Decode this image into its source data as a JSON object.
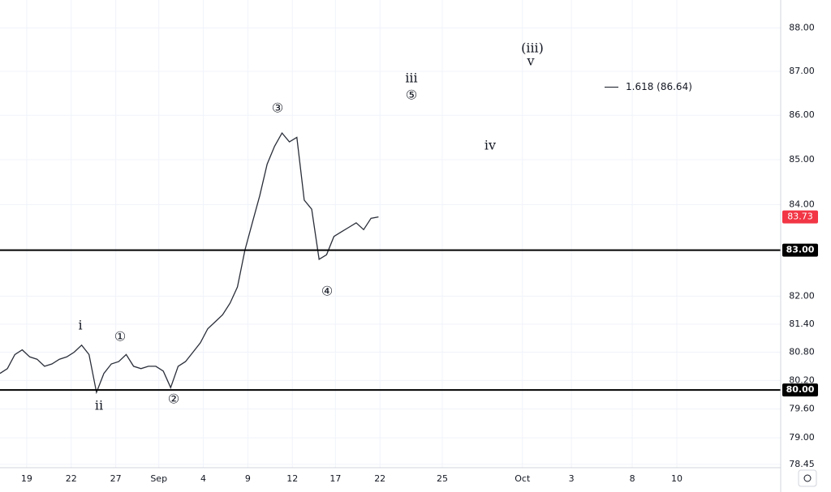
{
  "chart_data": {
    "type": "line",
    "log": true,
    "grid": true,
    "series": [
      {
        "color": "#2a2e39",
        "x": [
          0,
          0.5,
          1,
          1.5,
          2,
          2.5,
          3,
          3.5,
          4,
          4.5,
          5,
          5.5,
          6,
          6.5,
          7,
          7.5,
          8,
          8.5,
          9,
          9.5,
          10,
          10.5,
          11,
          11.5,
          12,
          12.5,
          13,
          13.5,
          14,
          14.5,
          15,
          15.5,
          16,
          16.5,
          17,
          17.5,
          18,
          18.5,
          19,
          19.5,
          20,
          20.5,
          21,
          21.5,
          22,
          22.5,
          23,
          23.5,
          24,
          24.5,
          25,
          25.5
        ],
        "values": [
          80.35,
          80.45,
          80.75,
          80.85,
          80.7,
          80.65,
          80.5,
          80.55,
          80.65,
          80.7,
          80.8,
          80.95,
          80.75,
          79.95,
          80.35,
          80.55,
          80.6,
          80.75,
          80.5,
          80.45,
          80.5,
          80.5,
          80.4,
          80.05,
          80.5,
          80.6,
          80.8,
          81.0,
          81.3,
          81.45,
          81.6,
          81.85,
          82.2,
          83.0,
          83.6,
          84.2,
          84.9,
          85.3,
          85.6,
          85.4,
          85.5,
          84.1,
          83.9,
          82.8,
          82.9,
          83.3,
          83.4,
          83.5,
          83.6,
          83.45,
          83.7,
          83.73
        ]
      }
    ],
    "xlim": [
      0,
      52.6
    ],
    "xticks": [
      {
        "value": 1.8,
        "label": "19"
      },
      {
        "value": 4.8,
        "label": "22"
      },
      {
        "value": 7.8,
        "label": "27"
      },
      {
        "value": 10.7,
        "label": "Sep"
      },
      {
        "value": 13.7,
        "label": "4"
      },
      {
        "value": 16.7,
        "label": "9"
      },
      {
        "value": 19.7,
        "label": "12"
      },
      {
        "value": 22.6,
        "label": "17"
      },
      {
        "value": 25.6,
        "label": "22"
      },
      {
        "value": 29.8,
        "label": "25"
      },
      {
        "value": 35.2,
        "label": "Oct"
      },
      {
        "value": 38.5,
        "label": "3"
      },
      {
        "value": 42.6,
        "label": "8"
      },
      {
        "value": 45.6,
        "label": "10"
      }
    ],
    "ylim": [
      78.38,
      88.65
    ],
    "yticks": [
      {
        "value": 78.45,
        "label": "78.45"
      },
      {
        "value": 79,
        "label": "79.00"
      },
      {
        "value": 79.6,
        "label": "79.60"
      },
      {
        "value": 80.2,
        "label": "80.20"
      },
      {
        "value": 80.8,
        "label": "80.80"
      },
      {
        "value": 81.4,
        "label": "81.40"
      },
      {
        "value": 82,
        "label": "82.00"
      },
      {
        "value": 84,
        "label": "84.00"
      },
      {
        "value": 85,
        "label": "85.00"
      },
      {
        "value": 86,
        "label": "86.00"
      },
      {
        "value": 87,
        "label": "87.00"
      },
      {
        "value": 88,
        "label": "88.00"
      }
    ],
    "hlines": [
      {
        "value": 83,
        "label": "83.00"
      },
      {
        "value": 80,
        "label": "80.00"
      }
    ],
    "last_price": 83.73,
    "fib_level": {
      "value": 86.64,
      "label": "1.618 (86.64)"
    },
    "annotations": [
      "i",
      "①",
      "ii",
      "②",
      "③",
      "④",
      "iii",
      "⑤",
      "iv",
      "(iii)",
      "v"
    ]
  }
}
